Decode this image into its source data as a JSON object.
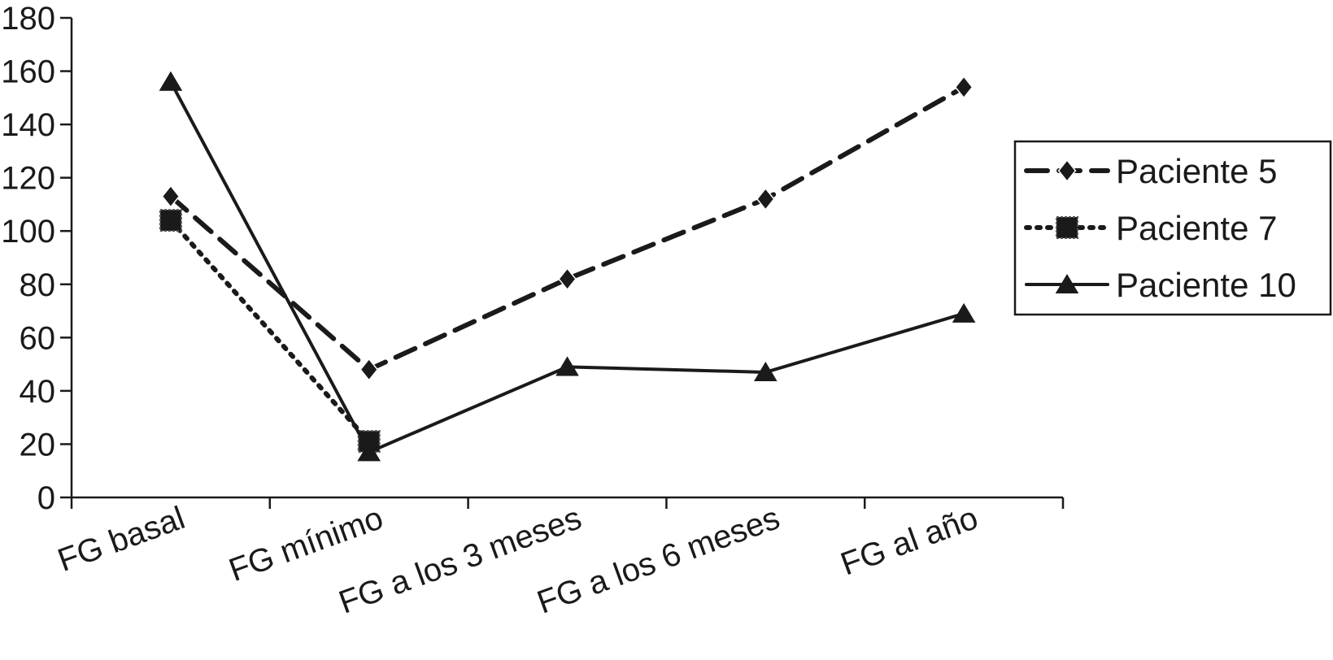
{
  "chart_data": {
    "type": "line",
    "title": "",
    "xlabel": "",
    "ylabel": "",
    "categories": [
      "FG basal",
      "FG mínimo",
      "FG a los 3 meses",
      "FG a los 6 meses",
      "FG al año"
    ],
    "y_ticks": [
      "0",
      "20",
      "40",
      "60",
      "80",
      "100",
      "120",
      "140",
      "160",
      "180"
    ],
    "ylim": [
      0,
      180
    ],
    "grid": false,
    "legend_position": "right",
    "series": [
      {
        "name": "Paciente 5",
        "values": [
          113,
          48,
          82,
          112,
          154
        ],
        "line_style": "dashed",
        "marker": "diamond",
        "color": "#1a1a1a"
      },
      {
        "name": "Paciente 7",
        "values": [
          104,
          21,
          null,
          null,
          null
        ],
        "line_style": "dotted",
        "marker": "square",
        "color": "#1a1a1a"
      },
      {
        "name": "Paciente 10",
        "values": [
          156,
          17,
          49,
          47,
          69
        ],
        "line_style": "solid",
        "marker": "triangle",
        "color": "#1a1a1a"
      }
    ]
  }
}
